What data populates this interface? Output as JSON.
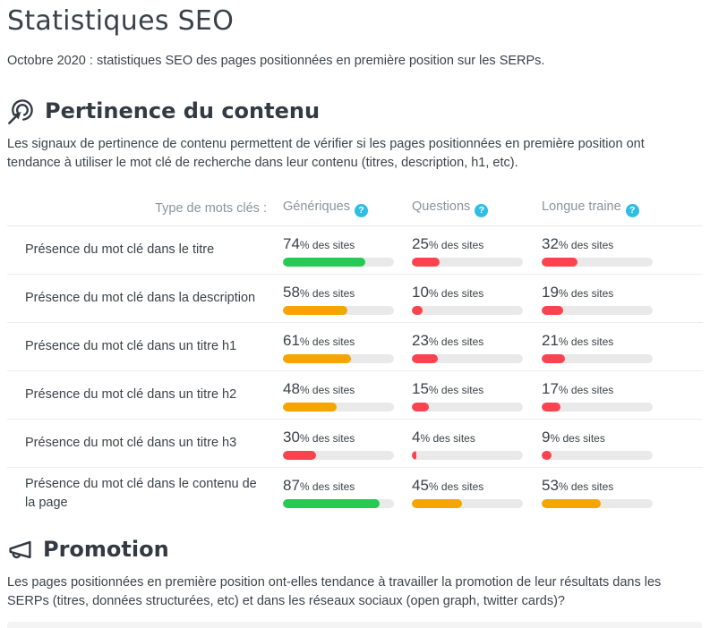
{
  "page": {
    "title": "Statistiques SEO",
    "subtitle": "Octobre 2020 : statistiques SEO des pages positionnées en première position sur les SERPs."
  },
  "colors": {
    "green": "#25ca53",
    "orange": "#f6a400",
    "red": "#fb4350",
    "cyan_badge": "#2fbde4"
  },
  "icons": {
    "pertinence": "target-click-icon",
    "promotion": "megaphone-icon",
    "help": "question-icon"
  },
  "sections": {
    "pertinence": {
      "heading": "Pertinence du contenu",
      "description": "Les signaux de pertinence de contenu permettent de vérifier si les pages positionnées en première position ont tendance à utiliser le mot clé de recherche dans leur contenu (titres, description, h1, etc)."
    },
    "promotion": {
      "heading": "Promotion",
      "description": "Les pages positionnées en première position ont-elles tendance à travailler la promotion de leur résultats dans les SERPs (titres, données structurées, etc) et dans les réseaux sociaux (open graph, twitter cards)?"
    }
  },
  "table": {
    "header": {
      "row_label": "Type de mots clés :",
      "columns": [
        "Génériques",
        "Questions",
        "Longue traine"
      ],
      "help_glyph": "?"
    },
    "unit_suffix": "% des sites",
    "rows": [
      {
        "label": "Présence du mot clé dans le titre",
        "cells": [
          {
            "value": 74,
            "color": "green"
          },
          {
            "value": 25,
            "color": "red"
          },
          {
            "value": 32,
            "color": "red"
          }
        ]
      },
      {
        "label": "Présence du mot clé dans la description",
        "cells": [
          {
            "value": 58,
            "color": "orange"
          },
          {
            "value": 10,
            "color": "red"
          },
          {
            "value": 19,
            "color": "red"
          }
        ]
      },
      {
        "label": "Présence du mot clé dans un titre h1",
        "cells": [
          {
            "value": 61,
            "color": "orange"
          },
          {
            "value": 23,
            "color": "red"
          },
          {
            "value": 21,
            "color": "red"
          }
        ]
      },
      {
        "label": "Présence du mot clé dans un titre h2",
        "cells": [
          {
            "value": 48,
            "color": "orange"
          },
          {
            "value": 15,
            "color": "red"
          },
          {
            "value": 17,
            "color": "red"
          }
        ]
      },
      {
        "label": "Présence du mot clé dans un titre h3",
        "cells": [
          {
            "value": 30,
            "color": "red"
          },
          {
            "value": 4,
            "color": "red"
          },
          {
            "value": 9,
            "color": "red"
          }
        ]
      },
      {
        "label": "Présence du mot clé dans le contenu de la page",
        "cells": [
          {
            "value": 87,
            "color": "green"
          },
          {
            "value": 45,
            "color": "orange"
          },
          {
            "value": 53,
            "color": "orange"
          }
        ]
      }
    ]
  }
}
